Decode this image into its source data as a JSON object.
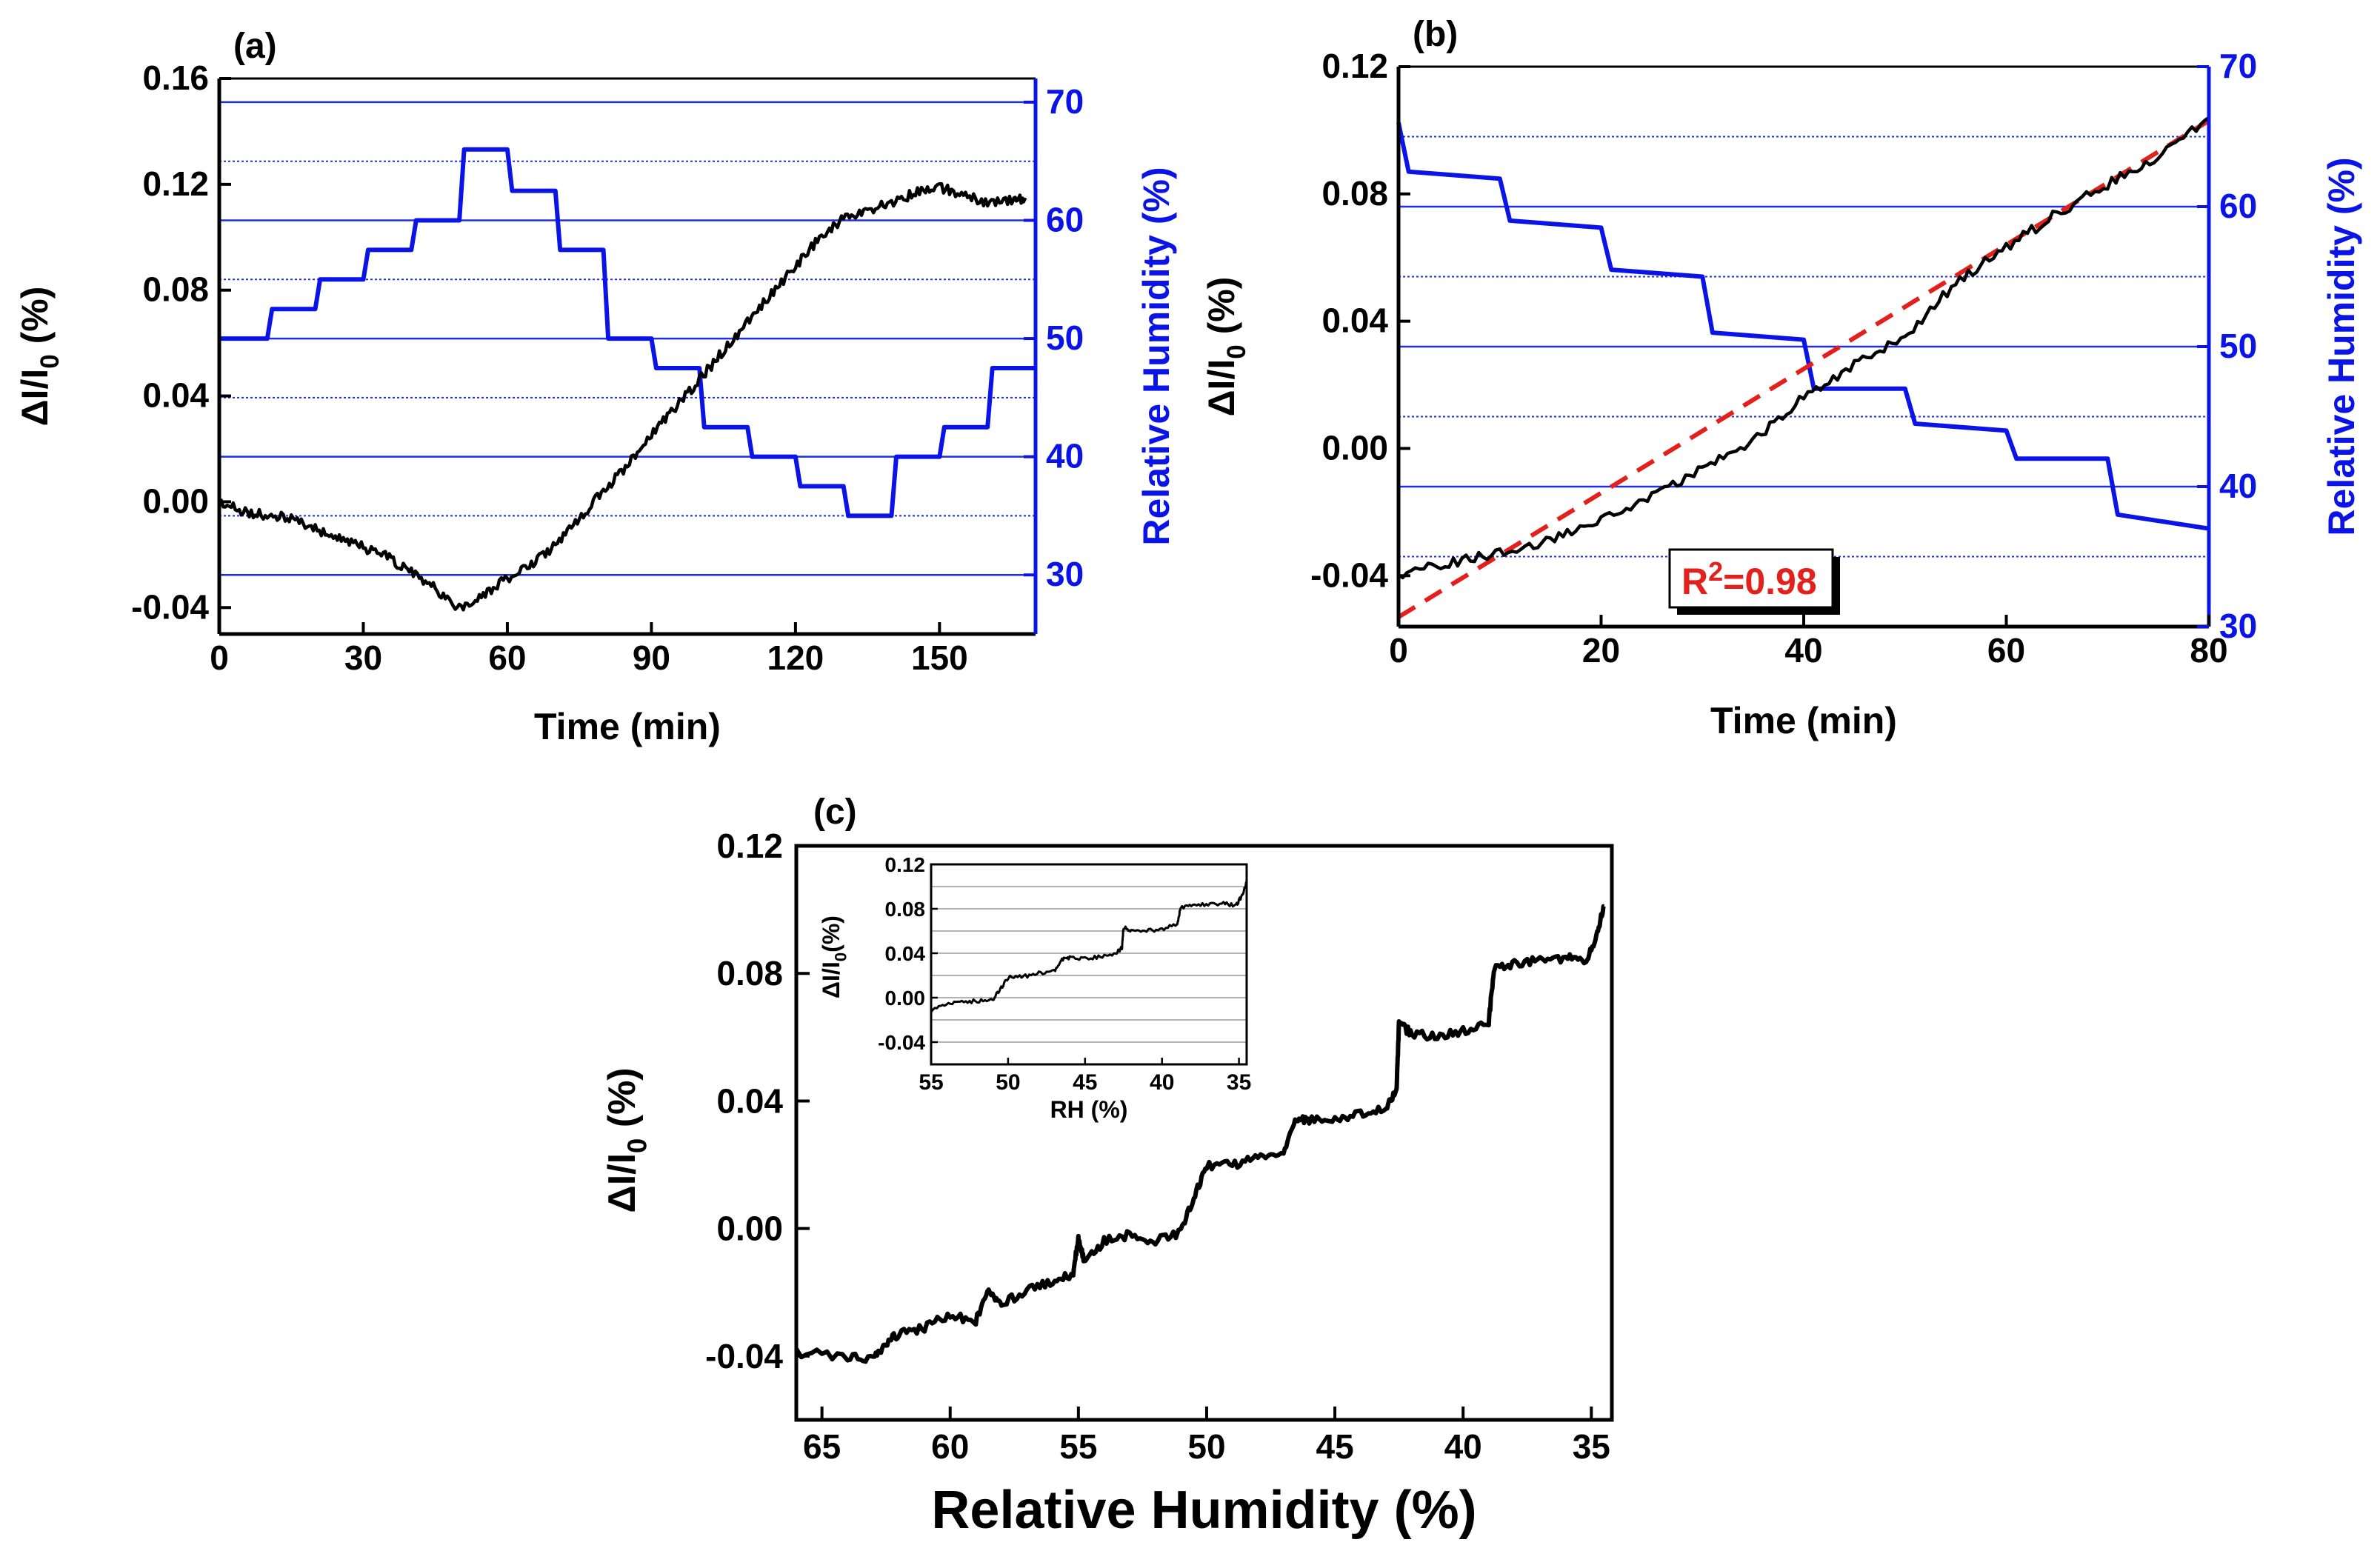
{
  "colors": {
    "axis": "#000000",
    "data": "#000000",
    "humidity": "#0a14e6",
    "grid": "#1f2fe0",
    "fit": "#e3201b",
    "inset_grid": "#9a9a9a"
  },
  "chart_data": [
    {
      "id": "a",
      "panel_label": "(a)",
      "type": "line",
      "title": "",
      "xlabel": "Time (min)",
      "ylabel_left": "ΔI/I",
      "ylabel_left_sub": "0",
      "ylabel_left_tail": " (%)",
      "ylabel_right": "Relative Humidity (%)",
      "xlim": [
        0,
        170
      ],
      "ylim_left": [
        -0.05,
        0.16
      ],
      "ylim_right": [
        25,
        72
      ],
      "x_ticks": [
        0,
        30,
        60,
        90,
        120,
        150
      ],
      "x_tick_labels": [
        "0",
        "30",
        "60",
        "90",
        "120",
        "150"
      ],
      "y_left_ticks": [
        -0.04,
        0.0,
        0.04,
        0.08,
        0.12,
        0.16
      ],
      "y_left_tick_labels": [
        "-0.04",
        "0.00",
        "0.04",
        "0.08",
        "0.12",
        "0.16"
      ],
      "y_right_ticks": [
        30,
        40,
        50,
        60,
        70
      ],
      "y_right_tick_labels": [
        "30",
        "40",
        "50",
        "60",
        "70"
      ],
      "grid_major_right": [
        30,
        40,
        50,
        60,
        70
      ],
      "grid_minor_right": [
        35,
        45,
        55,
        65
      ],
      "series": [
        {
          "axis": "left",
          "x": [
            0,
            5,
            10,
            15,
            20,
            25,
            30,
            35,
            40,
            45,
            50,
            55,
            60,
            65,
            70,
            75,
            80,
            85,
            90,
            95,
            100,
            105,
            110,
            115,
            120,
            125,
            130,
            135,
            140,
            145,
            150,
            155,
            160,
            165,
            168
          ],
          "y": [
            0.0,
            -0.004,
            -0.005,
            -0.006,
            -0.01,
            -0.014,
            -0.017,
            -0.021,
            -0.027,
            -0.033,
            -0.04,
            -0.035,
            -0.029,
            -0.024,
            -0.016,
            -0.006,
            0.004,
            0.014,
            0.025,
            0.036,
            0.046,
            0.057,
            0.068,
            0.079,
            0.089,
            0.1,
            0.107,
            0.11,
            0.113,
            0.117,
            0.119,
            0.116,
            0.113,
            0.114,
            0.114
          ]
        },
        {
          "axis": "right",
          "x": [
            0,
            10,
            11,
            20,
            21,
            30,
            31,
            40,
            41,
            50,
            51,
            60,
            61,
            70,
            71,
            80,
            81,
            90,
            91,
            100,
            101,
            110,
            111,
            120,
            121,
            130,
            131,
            140,
            141,
            150,
            151,
            160,
            161,
            170
          ],
          "y": [
            50,
            50,
            52.5,
            52.5,
            55,
            55,
            57.5,
            57.5,
            60,
            60,
            66,
            66,
            62.5,
            62.5,
            57.5,
            57.5,
            50,
            50,
            47.5,
            47.5,
            42.5,
            42.5,
            40,
            40,
            37.5,
            37.5,
            35,
            35,
            40,
            40,
            42.5,
            42.5,
            47.5,
            47.5
          ]
        }
      ]
    },
    {
      "id": "b",
      "panel_label": "(b)",
      "type": "line",
      "title": "",
      "xlabel": "Time (min)",
      "ylabel_left": "ΔI/I",
      "ylabel_left_sub": "0",
      "ylabel_left_tail": " (%)",
      "ylabel_right": "Relative Humidity (%)",
      "xlim": [
        0,
        80
      ],
      "ylim_left": [
        -0.056,
        0.12
      ],
      "ylim_right": [
        30,
        70
      ],
      "x_ticks": [
        0,
        20,
        40,
        60,
        80
      ],
      "x_tick_labels": [
        "0",
        "20",
        "40",
        "60",
        "80"
      ],
      "y_left_ticks": [
        -0.04,
        0.0,
        0.04,
        0.08,
        0.12
      ],
      "y_left_tick_labels": [
        "-0.04",
        "0.00",
        "0.04",
        "0.08",
        "0.12"
      ],
      "y_right_ticks": [
        30,
        40,
        50,
        60,
        70
      ],
      "y_right_tick_labels": [
        "30",
        "40",
        "50",
        "60",
        "70"
      ],
      "grid_major_right": [
        40,
        50,
        60
      ],
      "grid_minor_right": [
        35,
        45,
        55,
        65
      ],
      "annotation": {
        "base": "R",
        "sup": "2",
        "rest": "=0.98"
      },
      "fit": {
        "x": [
          0,
          80
        ],
        "y": [
          -0.053,
          0.103
        ]
      },
      "series": [
        {
          "axis": "left",
          "x": [
            0,
            5,
            10,
            15,
            20,
            25,
            30,
            35,
            40,
            45,
            50,
            55,
            60,
            65,
            70,
            75,
            80
          ],
          "y": [
            -0.04,
            -0.036,
            -0.033,
            -0.029,
            -0.022,
            -0.015,
            -0.006,
            0.002,
            0.016,
            0.026,
            0.035,
            0.052,
            0.063,
            0.074,
            0.083,
            0.092,
            0.104
          ]
        },
        {
          "axis": "right",
          "x": [
            0,
            1,
            10,
            11,
            20,
            21,
            30,
            31,
            40,
            41,
            50,
            51,
            60,
            61,
            70,
            71,
            80
          ],
          "y": [
            66,
            62.5,
            62,
            59,
            58.5,
            55.5,
            55,
            51,
            50.5,
            47,
            47,
            44.5,
            44,
            42,
            42,
            38,
            37
          ]
        }
      ]
    },
    {
      "id": "c",
      "panel_label": "(c)",
      "type": "line",
      "title": "",
      "xlabel": "Relative Humidity (%)",
      "ylabel_left": "ΔI/I",
      "ylabel_left_sub": "0",
      "ylabel_left_tail": " (%)",
      "xlim": [
        66,
        34.2
      ],
      "ylim_left": [
        -0.06,
        0.12
      ],
      "x_ticks": [
        65,
        60,
        55,
        50,
        45,
        40,
        35
      ],
      "x_tick_labels": [
        "65",
        "60",
        "55",
        "50",
        "45",
        "40",
        "35"
      ],
      "y_left_ticks": [
        -0.04,
        0.0,
        0.04,
        0.08,
        0.12
      ],
      "y_left_tick_labels": [
        "-0.04",
        "0.00",
        "0.04",
        "0.08",
        "0.12"
      ],
      "series": [
        {
          "axis": "left",
          "x": [
            66,
            64,
            63,
            62.5,
            62,
            61,
            60,
            59,
            58.5,
            58,
            57,
            56,
            55.2,
            55,
            54.8,
            54,
            53,
            52,
            51,
            50.5,
            50,
            49,
            48,
            47,
            46.5,
            46,
            45,
            44,
            43,
            42.6,
            42.5,
            42,
            41,
            40,
            39,
            38.8,
            38,
            37,
            36,
            35.2,
            34.8,
            34.5
          ],
          "y": [
            -0.039,
            -0.04,
            -0.041,
            -0.036,
            -0.033,
            -0.031,
            -0.027,
            -0.029,
            -0.02,
            -0.024,
            -0.019,
            -0.017,
            -0.014,
            -0.003,
            -0.01,
            -0.004,
            -0.002,
            -0.004,
            -0.001,
            0.01,
            0.02,
            0.02,
            0.022,
            0.024,
            0.035,
            0.034,
            0.034,
            0.036,
            0.038,
            0.043,
            0.064,
            0.061,
            0.06,
            0.062,
            0.065,
            0.081,
            0.083,
            0.084,
            0.085,
            0.083,
            0.092,
            0.101
          ]
        }
      ],
      "inset": {
        "xlabel": "RH (%)",
        "ylabel_left": "ΔI/I",
        "ylabel_left_sub": "0",
        "ylabel_left_tail": "(%)",
        "xlim": [
          55,
          34.5
        ],
        "ylim": [
          -0.06,
          0.12
        ],
        "x_ticks": [
          55,
          50,
          45,
          40,
          35
        ],
        "x_tick_labels": [
          "55",
          "50",
          "45",
          "40",
          "35"
        ],
        "y_ticks": [
          -0.04,
          0.0,
          0.04,
          0.08,
          0.12
        ],
        "y_tick_labels": [
          "-0.04",
          "0.00",
          "0.04",
          "0.08",
          "0.12"
        ],
        "grid_y": [
          -0.04,
          -0.02,
          0.0,
          0.02,
          0.04,
          0.06,
          0.08,
          0.1
        ],
        "series": [
          {
            "x": [
              55,
              54,
              53,
              52,
              51,
              50.5,
              50,
              49,
              48,
              47,
              46.5,
              46,
              45,
              44,
              43,
              42.6,
              42.5,
              42,
              41,
              40,
              39,
              38.8,
              38,
              37,
              36,
              35.2,
              34.8,
              34.5
            ],
            "y": [
              -0.012,
              -0.006,
              -0.004,
              -0.003,
              -0.002,
              0.008,
              0.018,
              0.019,
              0.022,
              0.024,
              0.034,
              0.036,
              0.035,
              0.037,
              0.04,
              0.045,
              0.063,
              0.061,
              0.06,
              0.062,
              0.066,
              0.081,
              0.083,
              0.084,
              0.085,
              0.083,
              0.092,
              0.104
            ]
          }
        ]
      }
    }
  ]
}
